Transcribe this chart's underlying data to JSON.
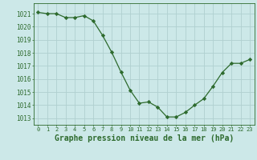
{
  "x": [
    0,
    1,
    2,
    3,
    4,
    5,
    6,
    7,
    8,
    9,
    10,
    11,
    12,
    13,
    14,
    15,
    16,
    17,
    18,
    19,
    20,
    21,
    22,
    23
  ],
  "y": [
    1021.1,
    1021.0,
    1021.0,
    1020.7,
    1020.7,
    1020.85,
    1020.45,
    1019.35,
    1018.05,
    1016.55,
    1015.15,
    1014.15,
    1014.25,
    1013.85,
    1013.1,
    1013.1,
    1013.45,
    1014.0,
    1014.5,
    1015.45,
    1016.5,
    1017.2,
    1017.2,
    1017.5
  ],
  "line_color": "#2d6a2d",
  "marker": "D",
  "marker_size": 2.2,
  "bg_color": "#cce8e8",
  "grid_color": "#b0d0d0",
  "xlabel": "Graphe pression niveau de la mer (hPa)",
  "xlabel_fontsize": 7.0,
  "ylabel_ticks": [
    1013,
    1014,
    1015,
    1016,
    1017,
    1018,
    1019,
    1020,
    1021
  ],
  "ylim": [
    1012.5,
    1021.8
  ],
  "xlim": [
    -0.5,
    23.5
  ],
  "xtick_labels": [
    "0",
    "1",
    "2",
    "3",
    "4",
    "5",
    "6",
    "7",
    "8",
    "9",
    "10",
    "11",
    "12",
    "13",
    "14",
    "15",
    "16",
    "17",
    "18",
    "19",
    "20",
    "21",
    "22",
    "23"
  ]
}
